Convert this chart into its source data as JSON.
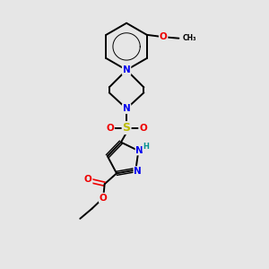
{
  "background_color": "#e6e6e6",
  "figure_size": [
    3.0,
    3.0
  ],
  "dpi": 100,
  "colors": {
    "C": "#000000",
    "N": "#0000ee",
    "O": "#ee0000",
    "S": "#bbbb00",
    "H": "#009090",
    "bond": "#000000"
  },
  "bond_lw": 1.4,
  "font_size": 7.5
}
